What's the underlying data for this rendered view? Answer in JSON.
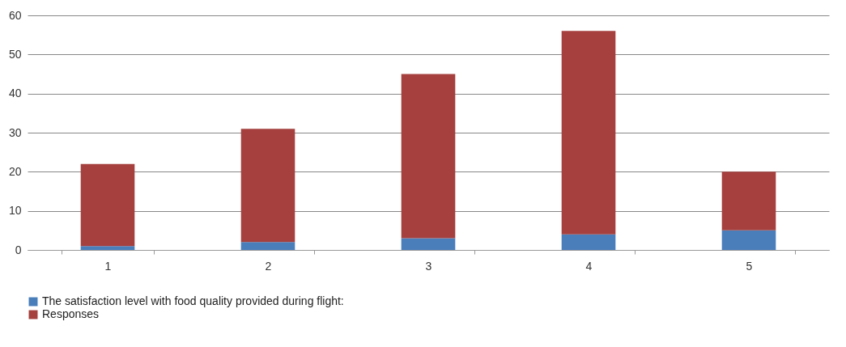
{
  "chart_data": {
    "type": "bar",
    "stacked": true,
    "categories": [
      "1",
      "2",
      "3",
      "4",
      "5"
    ],
    "series": [
      {
        "name": "The satisfaction level with food quality provided during flight:",
        "color": "#4a7ebb",
        "values": [
          1,
          2,
          3,
          4,
          5
        ]
      },
      {
        "name": "Responses",
        "color": "#a5403f",
        "values": [
          21,
          29,
          42,
          52,
          15
        ]
      }
    ],
    "ylim": [
      0,
      60
    ],
    "yticks": [
      0,
      10,
      20,
      30,
      40,
      50,
      60
    ],
    "grid": "y",
    "legend": "bottom"
  }
}
